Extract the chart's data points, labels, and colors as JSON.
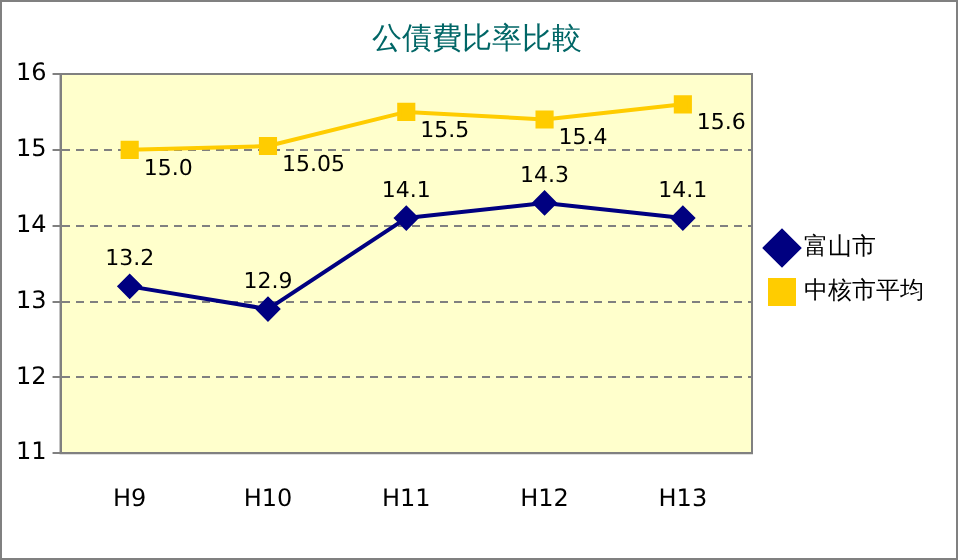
{
  "chart_data": {
    "type": "line",
    "title": "公債費比率比較",
    "categories": [
      "H9",
      "H10",
      "H11",
      "H12",
      "H13"
    ],
    "series": [
      {
        "name": "富山市",
        "color": "#000080",
        "marker": "diamond",
        "values": [
          13.2,
          12.9,
          14.1,
          14.3,
          14.1
        ],
        "value_labels": [
          "13.2",
          "12.9",
          "14.1",
          "14.3",
          "14.1"
        ]
      },
      {
        "name": "中核市平均",
        "color": "#ffcc00",
        "marker": "square",
        "values": [
          15.0,
          15.05,
          15.5,
          15.4,
          15.6
        ],
        "value_labels": [
          "15.0",
          "15.05",
          "15.5",
          "15.4",
          "15.6"
        ]
      }
    ],
    "ylim": [
      11,
      16
    ],
    "yticks": [
      11,
      12,
      13,
      14,
      15,
      16
    ],
    "grid": "y",
    "legend": "right"
  }
}
